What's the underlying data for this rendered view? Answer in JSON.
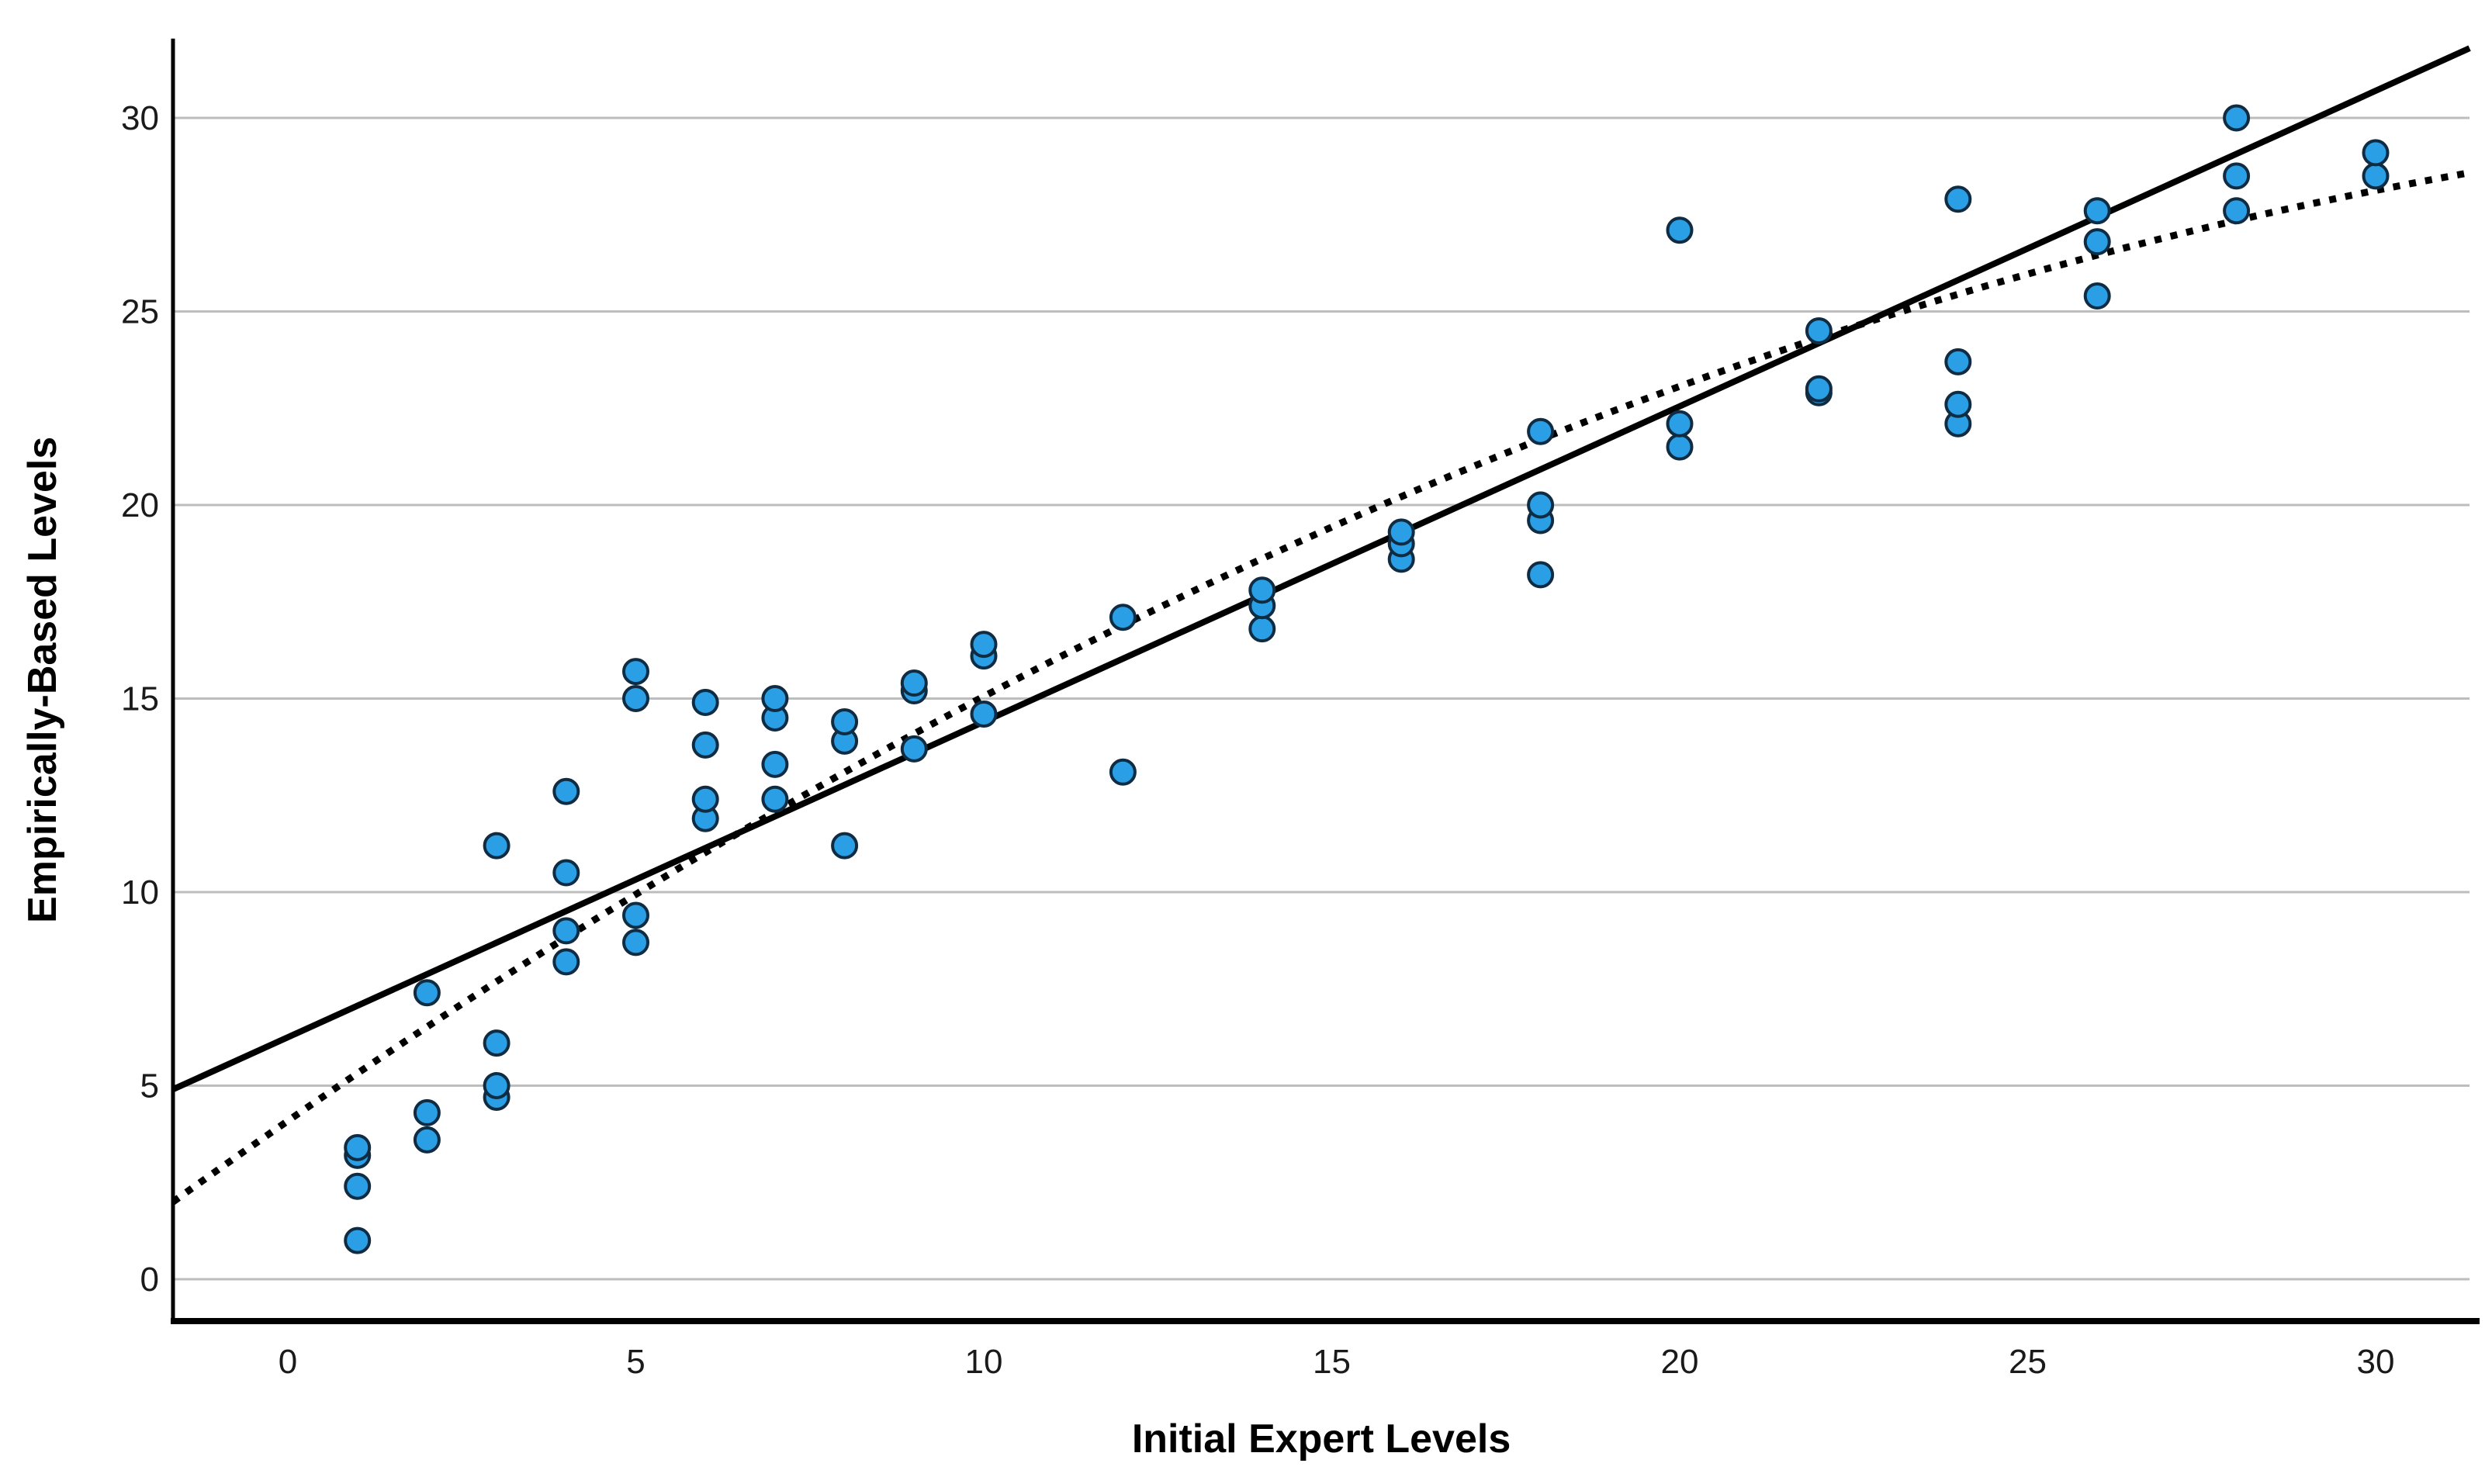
{
  "chart_data": {
    "type": "scatter",
    "title": "",
    "xlabel": "Initial Expert Levels",
    "ylabel": "Empirically-Based Levels",
    "x_ticks": [
      0,
      5,
      10,
      15,
      20,
      25,
      30
    ],
    "y_ticks": [
      0,
      5,
      10,
      15,
      20,
      25,
      30
    ],
    "xlim": [
      -1.65,
      31.35
    ],
    "ylim": [
      -1.1,
      32.05
    ],
    "grid": "horizontal-only",
    "legend": "none",
    "points": [
      [
        1,
        1.0
      ],
      [
        1,
        2.4
      ],
      [
        1,
        3.2
      ],
      [
        1,
        3.4
      ],
      [
        2,
        3.6
      ],
      [
        2,
        4.3
      ],
      [
        2,
        7.4
      ],
      [
        3,
        4.7
      ],
      [
        3,
        5.0
      ],
      [
        3,
        6.1
      ],
      [
        3,
        11.2
      ],
      [
        4,
        8.2
      ],
      [
        4,
        9.0
      ],
      [
        4,
        10.5
      ],
      [
        4,
        12.6
      ],
      [
        5,
        8.7
      ],
      [
        5,
        9.4
      ],
      [
        5,
        15.0
      ],
      [
        5,
        15.7
      ],
      [
        6,
        11.9
      ],
      [
        6,
        12.4
      ],
      [
        6,
        13.8
      ],
      [
        6,
        14.9
      ],
      [
        7,
        12.4
      ],
      [
        7,
        13.3
      ],
      [
        7,
        14.5
      ],
      [
        7,
        15.0
      ],
      [
        8,
        11.2
      ],
      [
        8,
        13.9
      ],
      [
        8,
        14.4
      ],
      [
        9,
        13.7
      ],
      [
        9,
        15.2
      ],
      [
        9,
        15.4
      ],
      [
        10,
        14.6
      ],
      [
        10,
        16.1
      ],
      [
        10,
        16.4
      ],
      [
        12,
        13.1
      ],
      [
        12,
        17.1
      ],
      [
        14,
        16.8
      ],
      [
        14,
        17.4
      ],
      [
        14,
        17.8
      ],
      [
        16,
        18.6
      ],
      [
        16,
        19.0
      ],
      [
        16,
        19.3
      ],
      [
        18,
        18.2
      ],
      [
        18,
        19.6
      ],
      [
        18,
        20.0
      ],
      [
        18,
        21.9
      ],
      [
        20,
        21.5
      ],
      [
        20,
        22.1
      ],
      [
        20,
        27.1
      ],
      [
        22,
        22.9
      ],
      [
        22,
        23.0
      ],
      [
        22,
        24.5
      ],
      [
        24,
        22.1
      ],
      [
        24,
        22.6
      ],
      [
        24,
        23.7
      ],
      [
        24,
        27.9
      ],
      [
        26,
        25.4
      ],
      [
        26,
        26.8
      ],
      [
        26,
        27.6
      ],
      [
        28,
        27.6
      ],
      [
        28,
        28.5
      ],
      [
        28,
        30.0
      ],
      [
        30,
        28.5
      ],
      [
        30,
        29.1
      ]
    ],
    "fit_lines": [
      {
        "name": "linear-fit",
        "style": "solid",
        "slope": 0.815,
        "intercept": 6.25,
        "x_range": [
          -1.65,
          31.35
        ]
      },
      {
        "name": "quadratic-fit",
        "style": "dotted",
        "a": 4.09,
        "b": 1.244,
        "c": -0.01476,
        "x_range": [
          -1.65,
          31.35
        ]
      }
    ],
    "colors": {
      "point_fill": "#2A9FE5",
      "point_stroke": "#0F2C42",
      "grid": "#BDBDBD",
      "axis": "#000000",
      "tick_label": "#1A1A1A",
      "fit_line": "#000000",
      "background": "#FFFFFF"
    }
  }
}
